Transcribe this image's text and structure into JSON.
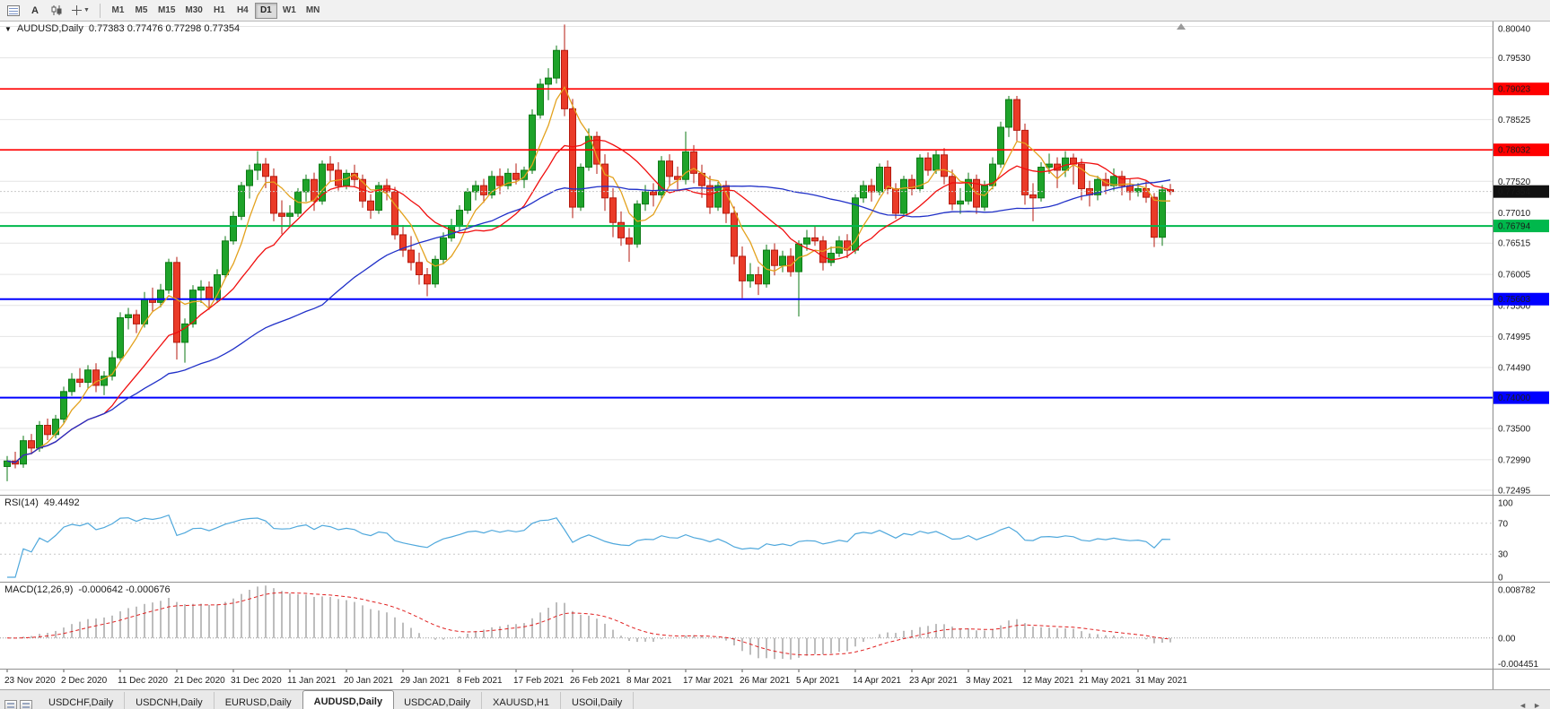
{
  "toolbar": {
    "text_tool_label": "A",
    "timeframes": [
      {
        "label": "M1",
        "active": false
      },
      {
        "label": "M5",
        "active": false
      },
      {
        "label": "M15",
        "active": false
      },
      {
        "label": "M30",
        "active": false
      },
      {
        "label": "H1",
        "active": false
      },
      {
        "label": "H4",
        "active": false
      },
      {
        "label": "D1",
        "active": true
      },
      {
        "label": "W1",
        "active": false
      },
      {
        "label": "MN",
        "active": false
      }
    ]
  },
  "chart_header": {
    "title": "AUDUSD,Daily",
    "ohlc": "0.77383 0.77476 0.77298 0.77354"
  },
  "price_axis": {
    "gridlines": [
      {
        "text": "0.80040",
        "price": 0.8004
      },
      {
        "text": "0.79530",
        "price": 0.7953
      },
      {
        "text": "0.78525",
        "price": 0.78525
      },
      {
        "text": "0.77520",
        "price": 0.7752
      },
      {
        "text": "0.77010",
        "price": 0.7701
      },
      {
        "text": "0.76515",
        "price": 0.76515
      },
      {
        "text": "0.76005",
        "price": 0.76005
      },
      {
        "text": "0.75500",
        "price": 0.755
      },
      {
        "text": "0.74995",
        "price": 0.74995
      },
      {
        "text": "0.74490",
        "price": 0.7449
      },
      {
        "text": "0.73500",
        "price": 0.735
      },
      {
        "text": "0.72990",
        "price": 0.7299
      },
      {
        "text": "0.72495",
        "price": 0.72495
      }
    ],
    "current": {
      "text": "0.77354",
      "price": 0.77354,
      "bg": "#111111",
      "fg": "#FFFFFF"
    }
  },
  "chart_data": {
    "type": "candlestick",
    "symbol": "AUDUSD",
    "period": "Daily",
    "ylim": [
      0.7242,
      0.8012
    ],
    "up_color": "#1EA32A",
    "up_border": "#0E7A16",
    "down_color": "#EA3B28",
    "down_border": "#B51A0F",
    "x_tick_step": 7,
    "x_tick_labels": [
      "23 Nov 2020",
      "2 Dec 2020",
      "11 Dec 2020",
      "21 Dec 2020",
      "31 Dec 2020",
      "11 Jan 2021",
      "20 Jan 2021",
      "29 Jan 2021",
      "8 Feb 2021",
      "17 Feb 2021",
      "26 Feb 2021",
      "8 Mar 2021",
      "17 Mar 2021",
      "26 Mar 2021",
      "5 Apr 2021",
      "14 Apr 2021",
      "23 Apr 2021",
      "3 May 2021",
      "12 May 2021",
      "21 May 2021",
      "31 May 2021"
    ],
    "horizontal_lines": [
      {
        "price": 0.79023,
        "label": "0.79023",
        "color": "#FF0000",
        "width": 1.6
      },
      {
        "price": 0.78032,
        "label": "0.78032",
        "color": "#FF0000",
        "width": 1.6
      },
      {
        "price": 0.76794,
        "label": "0.76794",
        "color": "#00B84C",
        "width": 2
      },
      {
        "price": 0.75603,
        "label": "0.75603",
        "color": "#0000FF",
        "width": 2
      },
      {
        "price": 0.74,
        "label": "0.74000",
        "color": "#0000FF",
        "width": 2
      }
    ],
    "moving_averages": [
      {
        "period": 5,
        "color": "#E3A21E",
        "name": "fast-ma-gold"
      },
      {
        "period": 13,
        "color": "#F00E0E",
        "name": "mid-ma-red"
      },
      {
        "period": 40,
        "color": "#2030C8",
        "name": "slow-ma-blue"
      }
    ],
    "candles_ohlc": [
      [
        0.7288,
        0.7305,
        0.7264,
        0.7297
      ],
      [
        0.7297,
        0.7312,
        0.7285,
        0.7292
      ],
      [
        0.7292,
        0.7338,
        0.7286,
        0.733
      ],
      [
        0.733,
        0.7341,
        0.7308,
        0.7318
      ],
      [
        0.7318,
        0.7362,
        0.7312,
        0.7355
      ],
      [
        0.7355,
        0.7366,
        0.7331,
        0.734
      ],
      [
        0.734,
        0.7372,
        0.7334,
        0.7365
      ],
      [
        0.7365,
        0.7418,
        0.7359,
        0.741
      ],
      [
        0.741,
        0.744,
        0.7403,
        0.743
      ],
      [
        0.743,
        0.7448,
        0.7417,
        0.7425
      ],
      [
        0.7425,
        0.7453,
        0.7415,
        0.7445
      ],
      [
        0.7445,
        0.7456,
        0.7409,
        0.742
      ],
      [
        0.742,
        0.7443,
        0.7404,
        0.7435
      ],
      [
        0.7435,
        0.7476,
        0.7428,
        0.7465
      ],
      [
        0.7465,
        0.7539,
        0.7461,
        0.753
      ],
      [
        0.753,
        0.7546,
        0.7511,
        0.7535
      ],
      [
        0.7535,
        0.7543,
        0.7505,
        0.752
      ],
      [
        0.752,
        0.7572,
        0.7514,
        0.756
      ],
      [
        0.756,
        0.7579,
        0.7539,
        0.7555
      ],
      [
        0.7555,
        0.7585,
        0.7547,
        0.7575
      ],
      [
        0.7575,
        0.7626,
        0.7569,
        0.762
      ],
      [
        0.762,
        0.7629,
        0.7462,
        0.749
      ],
      [
        0.749,
        0.7529,
        0.7457,
        0.752
      ],
      [
        0.752,
        0.7583,
        0.7514,
        0.7575
      ],
      [
        0.7575,
        0.7591,
        0.7554,
        0.758
      ],
      [
        0.758,
        0.7589,
        0.7543,
        0.756
      ],
      [
        0.756,
        0.7609,
        0.7554,
        0.76
      ],
      [
        0.76,
        0.7663,
        0.7594,
        0.7655
      ],
      [
        0.7655,
        0.7703,
        0.7649,
        0.7695
      ],
      [
        0.7695,
        0.7751,
        0.7689,
        0.7745
      ],
      [
        0.7745,
        0.7779,
        0.7724,
        0.777
      ],
      [
        0.777,
        0.7801,
        0.7754,
        0.778
      ],
      [
        0.778,
        0.779,
        0.7741,
        0.776
      ],
      [
        0.776,
        0.7773,
        0.7687,
        0.77
      ],
      [
        0.77,
        0.7721,
        0.7666,
        0.7695
      ],
      [
        0.7695,
        0.7713,
        0.7679,
        0.77
      ],
      [
        0.77,
        0.7741,
        0.7694,
        0.7735
      ],
      [
        0.7735,
        0.7763,
        0.7719,
        0.7755
      ],
      [
        0.7755,
        0.7766,
        0.7704,
        0.772
      ],
      [
        0.772,
        0.7786,
        0.7714,
        0.778
      ],
      [
        0.778,
        0.7793,
        0.7751,
        0.777
      ],
      [
        0.777,
        0.7783,
        0.7737,
        0.7745
      ],
      [
        0.7745,
        0.7771,
        0.7739,
        0.7765
      ],
      [
        0.7765,
        0.7779,
        0.7744,
        0.7755
      ],
      [
        0.7755,
        0.7763,
        0.7709,
        0.772
      ],
      [
        0.772,
        0.7731,
        0.7691,
        0.7705
      ],
      [
        0.7705,
        0.7751,
        0.7699,
        0.7745
      ],
      [
        0.7745,
        0.7756,
        0.7721,
        0.7735
      ],
      [
        0.7735,
        0.7743,
        0.7657,
        0.7665
      ],
      [
        0.7665,
        0.7681,
        0.7629,
        0.764
      ],
      [
        0.764,
        0.7663,
        0.7607,
        0.762
      ],
      [
        0.762,
        0.7636,
        0.7584,
        0.76
      ],
      [
        0.76,
        0.7611,
        0.7565,
        0.7585
      ],
      [
        0.7585,
        0.7631,
        0.7579,
        0.7625
      ],
      [
        0.7625,
        0.7669,
        0.7617,
        0.766
      ],
      [
        0.766,
        0.7691,
        0.7654,
        0.768
      ],
      [
        0.768,
        0.7713,
        0.7671,
        0.7705
      ],
      [
        0.7705,
        0.7741,
        0.7699,
        0.7735
      ],
      [
        0.7735,
        0.7753,
        0.7721,
        0.7745
      ],
      [
        0.7745,
        0.7756,
        0.7717,
        0.773
      ],
      [
        0.773,
        0.7769,
        0.7724,
        0.776
      ],
      [
        0.776,
        0.7773,
        0.7731,
        0.7745
      ],
      [
        0.7745,
        0.7773,
        0.7739,
        0.7765
      ],
      [
        0.7765,
        0.7781,
        0.7747,
        0.7755
      ],
      [
        0.7755,
        0.7776,
        0.7741,
        0.777
      ],
      [
        0.777,
        0.7869,
        0.7764,
        0.786
      ],
      [
        0.786,
        0.7919,
        0.7854,
        0.791
      ],
      [
        0.791,
        0.7936,
        0.7884,
        0.792
      ],
      [
        0.792,
        0.7973,
        0.7911,
        0.7965
      ],
      [
        0.7965,
        0.8007,
        0.7858,
        0.787
      ],
      [
        0.787,
        0.7886,
        0.7692,
        0.771
      ],
      [
        0.771,
        0.7781,
        0.7704,
        0.7775
      ],
      [
        0.7775,
        0.7838,
        0.7769,
        0.7825
      ],
      [
        0.7825,
        0.7833,
        0.7764,
        0.778
      ],
      [
        0.778,
        0.7796,
        0.7704,
        0.7725
      ],
      [
        0.7725,
        0.7741,
        0.7661,
        0.7685
      ],
      [
        0.7685,
        0.7703,
        0.7647,
        0.766
      ],
      [
        0.766,
        0.7676,
        0.7621,
        0.765
      ],
      [
        0.765,
        0.7721,
        0.7644,
        0.7715
      ],
      [
        0.7715,
        0.7746,
        0.7704,
        0.7735
      ],
      [
        0.7735,
        0.7749,
        0.7711,
        0.773
      ],
      [
        0.773,
        0.7793,
        0.7723,
        0.7785
      ],
      [
        0.7785,
        0.7796,
        0.7744,
        0.776
      ],
      [
        0.776,
        0.7776,
        0.7739,
        0.7755
      ],
      [
        0.7755,
        0.7833,
        0.7747,
        0.78
      ],
      [
        0.78,
        0.7811,
        0.7749,
        0.7765
      ],
      [
        0.7765,
        0.7779,
        0.7725,
        0.7745
      ],
      [
        0.7745,
        0.7761,
        0.7699,
        0.771
      ],
      [
        0.771,
        0.7751,
        0.7704,
        0.7745
      ],
      [
        0.7745,
        0.7753,
        0.7684,
        0.77
      ],
      [
        0.77,
        0.7711,
        0.7617,
        0.763
      ],
      [
        0.763,
        0.7646,
        0.7562,
        0.759
      ],
      [
        0.759,
        0.7619,
        0.7579,
        0.76
      ],
      [
        0.76,
        0.7613,
        0.7567,
        0.7585
      ],
      [
        0.7585,
        0.7649,
        0.7579,
        0.764
      ],
      [
        0.764,
        0.7651,
        0.7599,
        0.7615
      ],
      [
        0.7615,
        0.7639,
        0.7604,
        0.763
      ],
      [
        0.763,
        0.7643,
        0.7597,
        0.7605
      ],
      [
        0.7605,
        0.7656,
        0.7532,
        0.765
      ],
      [
        0.765,
        0.7673,
        0.7639,
        0.766
      ],
      [
        0.766,
        0.7679,
        0.7647,
        0.7655
      ],
      [
        0.7655,
        0.7663,
        0.7607,
        0.762
      ],
      [
        0.762,
        0.7646,
        0.7614,
        0.7635
      ],
      [
        0.7635,
        0.7663,
        0.7629,
        0.7655
      ],
      [
        0.7655,
        0.7666,
        0.7627,
        0.764
      ],
      [
        0.764,
        0.7731,
        0.7634,
        0.7725
      ],
      [
        0.7725,
        0.7753,
        0.7717,
        0.7745
      ],
      [
        0.7745,
        0.7756,
        0.7719,
        0.7735
      ],
      [
        0.7735,
        0.7781,
        0.7729,
        0.7775
      ],
      [
        0.7775,
        0.7786,
        0.7731,
        0.774
      ],
      [
        0.774,
        0.7749,
        0.7691,
        0.77
      ],
      [
        0.77,
        0.7761,
        0.7694,
        0.7755
      ],
      [
        0.7755,
        0.7763,
        0.7729,
        0.774
      ],
      [
        0.774,
        0.7796,
        0.7734,
        0.779
      ],
      [
        0.779,
        0.7799,
        0.7761,
        0.777
      ],
      [
        0.777,
        0.7803,
        0.7764,
        0.7795
      ],
      [
        0.7795,
        0.7806,
        0.7747,
        0.776
      ],
      [
        0.776,
        0.7771,
        0.7705,
        0.7715
      ],
      [
        0.7715,
        0.7741,
        0.7699,
        0.772
      ],
      [
        0.772,
        0.7766,
        0.7714,
        0.7755
      ],
      [
        0.7755,
        0.7763,
        0.7699,
        0.771
      ],
      [
        0.771,
        0.7753,
        0.7704,
        0.7745
      ],
      [
        0.7745,
        0.7791,
        0.7739,
        0.778
      ],
      [
        0.778,
        0.7849,
        0.7774,
        0.784
      ],
      [
        0.784,
        0.7891,
        0.7824,
        0.7885
      ],
      [
        0.7885,
        0.7891,
        0.7817,
        0.7835
      ],
      [
        0.7835,
        0.7846,
        0.7714,
        0.773
      ],
      [
        0.773,
        0.7749,
        0.7687,
        0.7725
      ],
      [
        0.7725,
        0.7783,
        0.7719,
        0.7775
      ],
      [
        0.7775,
        0.7797,
        0.7764,
        0.778
      ],
      [
        0.778,
        0.7791,
        0.7741,
        0.777
      ],
      [
        0.777,
        0.7801,
        0.7759,
        0.779
      ],
      [
        0.779,
        0.7797,
        0.7747,
        0.778
      ],
      [
        0.778,
        0.7789,
        0.7721,
        0.774
      ],
      [
        0.774,
        0.7753,
        0.7711,
        0.773
      ],
      [
        0.773,
        0.7761,
        0.7721,
        0.7755
      ],
      [
        0.7755,
        0.7766,
        0.7731,
        0.7745
      ],
      [
        0.7745,
        0.7773,
        0.7737,
        0.776
      ],
      [
        0.776,
        0.7769,
        0.7729,
        0.7745
      ],
      [
        0.7745,
        0.7756,
        0.7721,
        0.7735
      ],
      [
        0.7735,
        0.7749,
        0.7727,
        0.774
      ],
      [
        0.774,
        0.7753,
        0.7717,
        0.7726
      ],
      [
        0.7726,
        0.7733,
        0.7645,
        0.7661
      ],
      [
        0.7661,
        0.7746,
        0.7647,
        0.7738
      ],
      [
        0.77383,
        0.77476,
        0.77298,
        0.77354
      ]
    ],
    "indicators": {
      "rsi": {
        "label": "RSI(14)",
        "value": "49.4492",
        "period": 14,
        "range": [
          0,
          100
        ],
        "levels": [
          70,
          30
        ],
        "scale_labels": [
          {
            "text": "100",
            "value": 100
          },
          {
            "text": "70",
            "value": 70
          },
          {
            "text": "30",
            "value": 30
          },
          {
            "text": "0",
            "value": 0
          }
        ],
        "color": "#4FA8DC"
      },
      "macd": {
        "label": "MACD(12,26,9)",
        "value": "-0.000642 -0.000676",
        "fast": 12,
        "slow": 26,
        "signal": 9,
        "ylim": [
          -0.0047,
          0.009
        ],
        "scale_labels": [
          {
            "text": "0.008782",
            "value": 0.008782
          },
          {
            "text": "0.00",
            "value": 0
          },
          {
            "text": "-0.004451",
            "value": -0.004451
          }
        ],
        "histogram_color": "#BDBDBD",
        "signal_color": "#E02020"
      }
    }
  },
  "bottom_tabs": {
    "tabs": [
      {
        "label": "USDCHF,Daily",
        "active": false
      },
      {
        "label": "USDCNH,Daily",
        "active": false
      },
      {
        "label": "EURUSD,Daily",
        "active": false
      },
      {
        "label": "AUDUSD,Daily",
        "active": true
      },
      {
        "label": "USDCAD,Daily",
        "active": false
      },
      {
        "label": "XAUUSD,H1",
        "active": false
      },
      {
        "label": "USOil,Daily",
        "active": false
      }
    ],
    "scroll_left": "◄",
    "scroll_right": "►"
  }
}
